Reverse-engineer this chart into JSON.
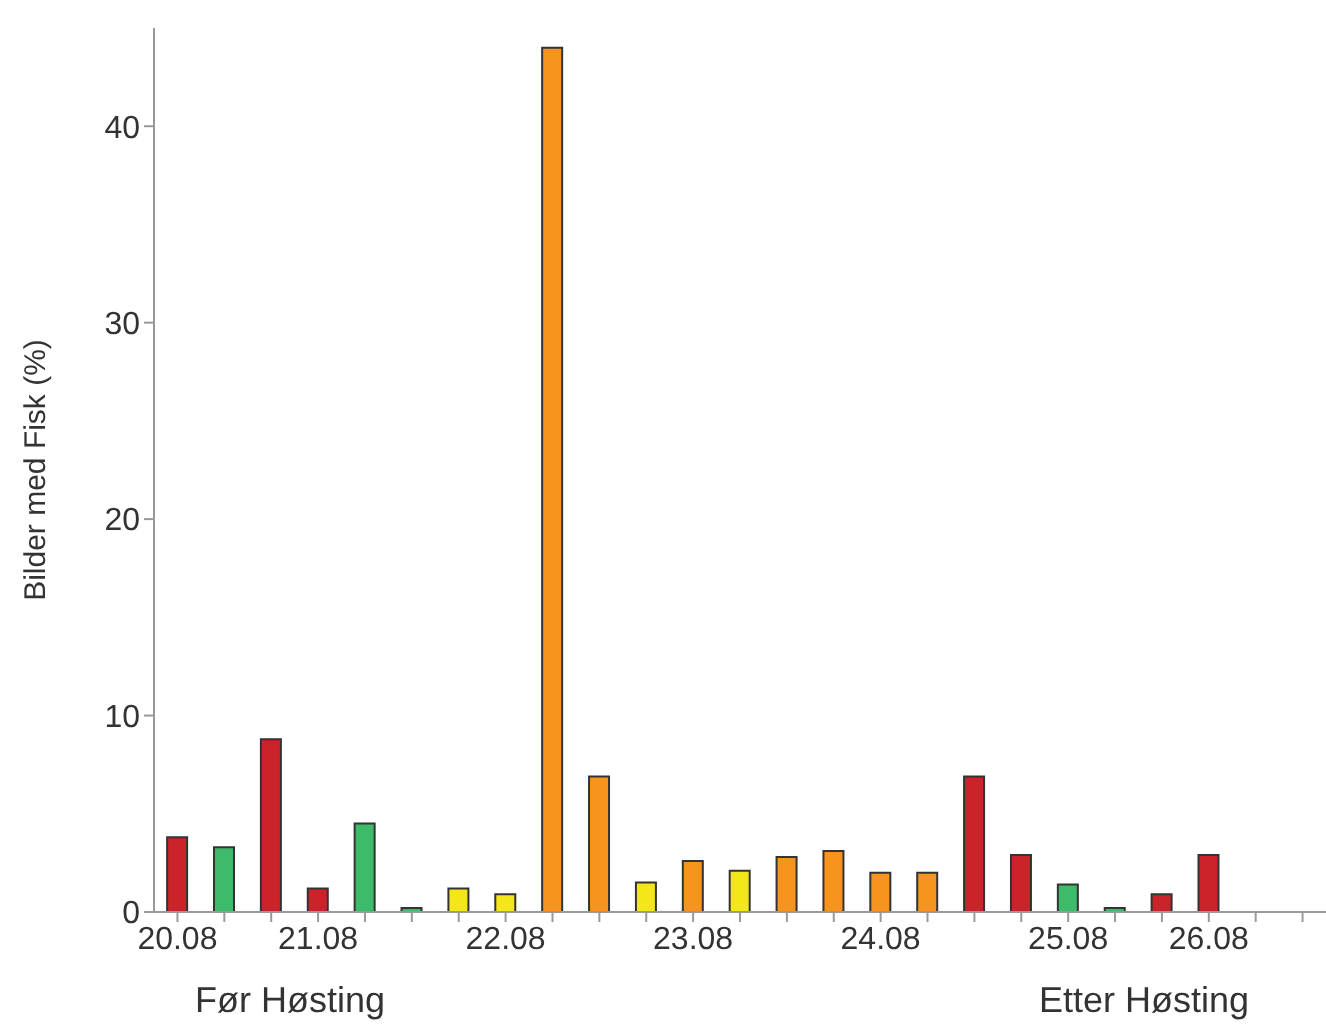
{
  "chart_data": {
    "type": "bar",
    "ylabel": "Bilder med Fisk (%)",
    "categories": [
      "20.08",
      null,
      null,
      "21.08",
      null,
      null,
      null,
      "22.08",
      null,
      null,
      null,
      "23.08",
      null,
      null,
      null,
      "24.08",
      null,
      null,
      null,
      "25.08",
      null,
      null,
      "26.08",
      null,
      null
    ],
    "values": [
      3.8,
      3.3,
      8.8,
      1.2,
      4.5,
      0.2,
      1.2,
      0.9,
      44,
      6.9,
      1.5,
      2.6,
      2.1,
      2.8,
      3.1,
      2.0,
      2.0,
      6.9,
      2.9,
      1.4,
      0.2,
      0.9,
      2.9,
      null,
      null
    ],
    "colors": [
      "#cc2229",
      "#3dba6a",
      "#cc2229",
      "#cc2229",
      "#3dba6a",
      "#3dba6a",
      "#f5e617",
      "#f5e617",
      "#f7941d",
      "#f7941d",
      "#f5e617",
      "#f7941d",
      "#f5e617",
      "#f7941d",
      "#f7941d",
      "#f7941d",
      "#f7941d",
      "#cc2229",
      "#cc2229",
      "#3dba6a",
      "#3dba6a",
      "#cc2229",
      "#cc2229",
      "#cc2229",
      "#cc2229"
    ],
    "ylim": [
      0,
      45
    ],
    "yticks": [
      0,
      10,
      20,
      30,
      40
    ],
    "grid": false,
    "annotations": [
      "Før Høsting",
      "Etter Høsting"
    ]
  }
}
